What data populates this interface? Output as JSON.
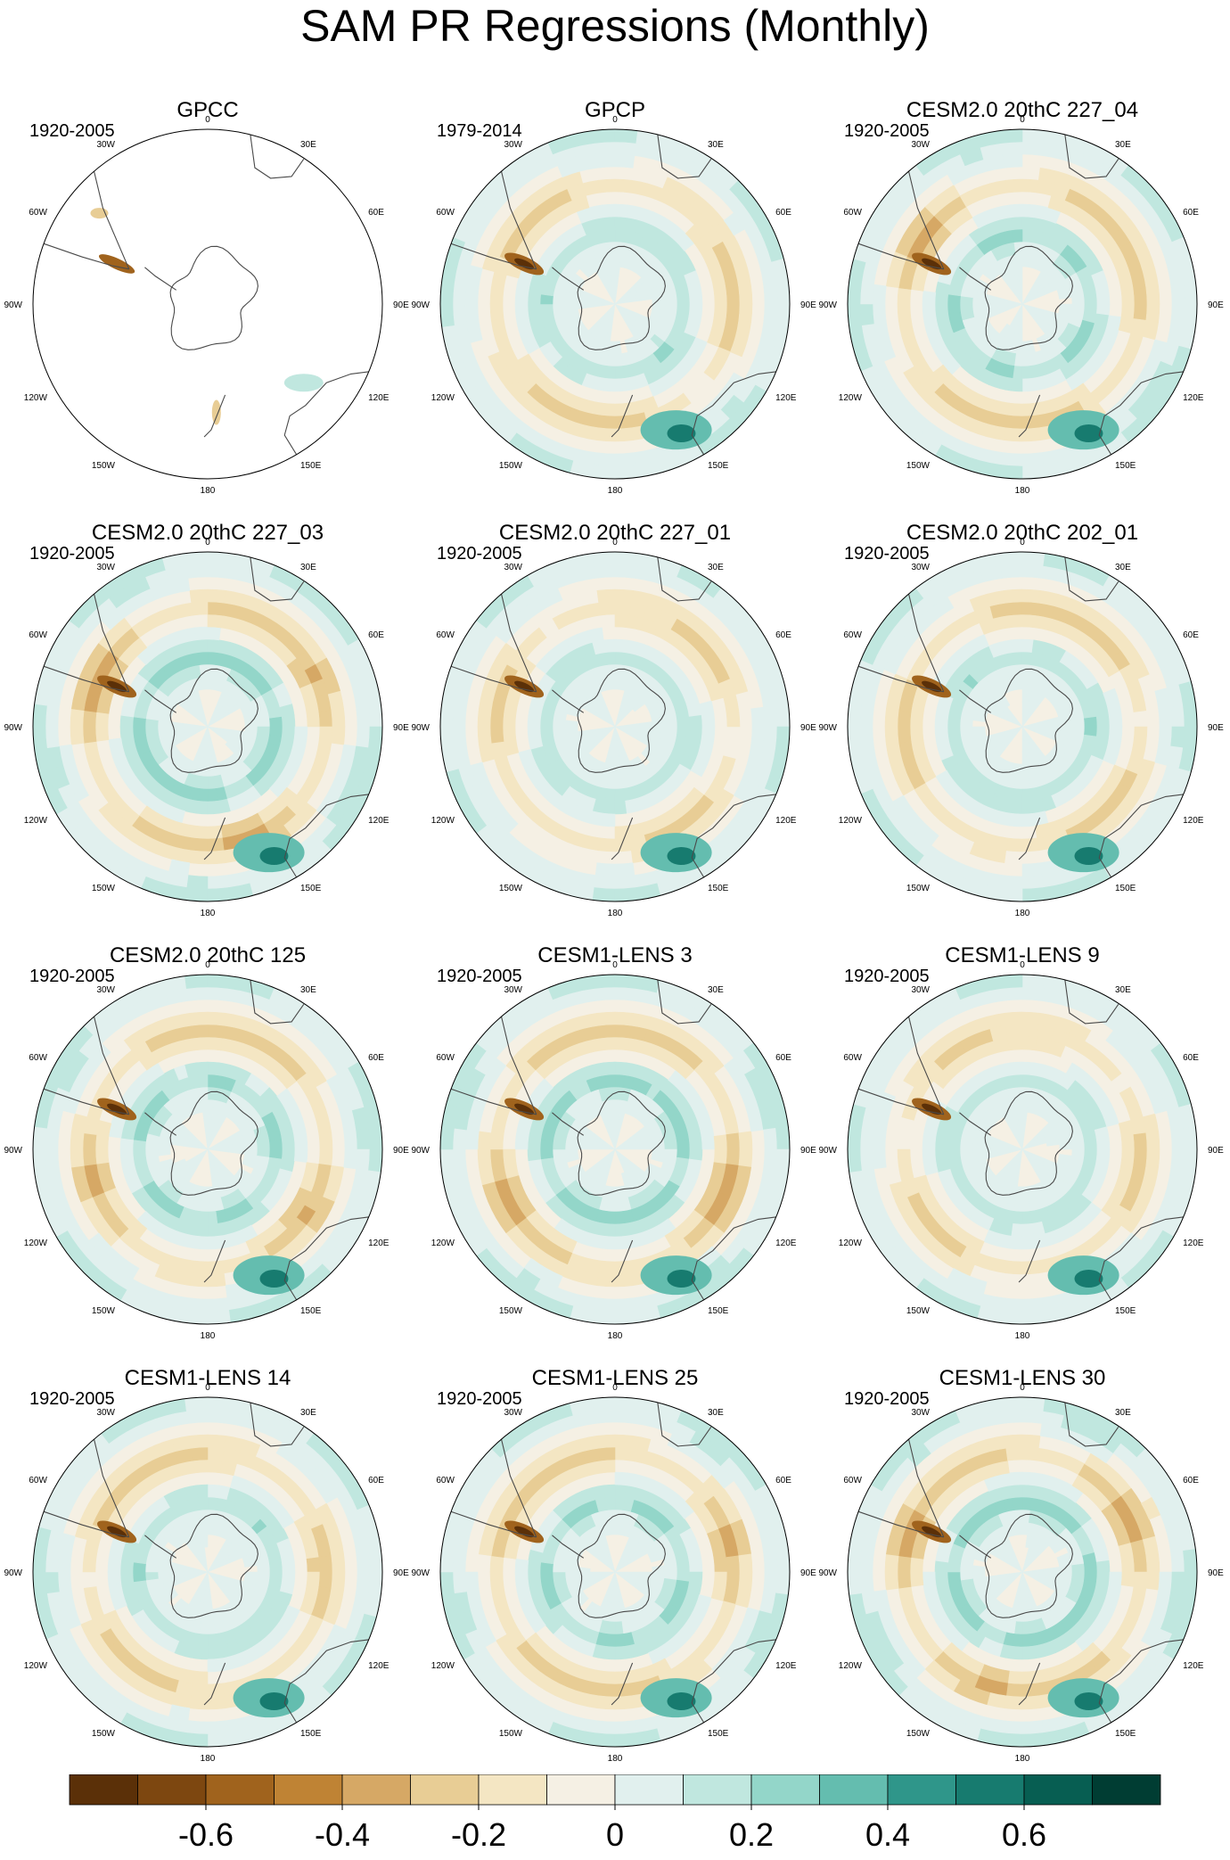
{
  "figure": {
    "title": "SAM PR Regressions (Monthly)"
  },
  "lon_labels": [
    "0",
    "30E",
    "60E",
    "90E",
    "120E",
    "150E",
    "180",
    "150W",
    "120W",
    "90W",
    "60W",
    "30W"
  ],
  "chart_data": [
    {
      "type": "heatmap",
      "projection": "south-polar-stereographic",
      "title": "GPCC",
      "period": "1920-2005",
      "coverage": "land-only",
      "lon_labels": [
        "0",
        "30E",
        "60E",
        "90E",
        "120E",
        "150E",
        "180",
        "150W",
        "120W",
        "90W",
        "60W",
        "30W"
      ]
    },
    {
      "type": "heatmap",
      "projection": "south-polar-stereographic",
      "title": "GPCP",
      "period": "1979-2014",
      "coverage": "global",
      "lon_labels": [
        "0",
        "30E",
        "60E",
        "90E",
        "120E",
        "150E",
        "180",
        "150W",
        "120W",
        "90W",
        "60W",
        "30W"
      ]
    },
    {
      "type": "heatmap",
      "projection": "south-polar-stereographic",
      "title": "CESM2.0 20thC 227_04",
      "period": "1920-2005",
      "coverage": "global",
      "lon_labels": [
        "0",
        "30E",
        "60E",
        "90E",
        "120E",
        "150E",
        "180",
        "150W",
        "120W",
        "90W",
        "60W",
        "30W"
      ]
    },
    {
      "type": "heatmap",
      "projection": "south-polar-stereographic",
      "title": "CESM2.0 20thC 227_03",
      "period": "1920-2005",
      "coverage": "global",
      "lon_labels": [
        "0",
        "30E",
        "60E",
        "90E",
        "120E",
        "150E",
        "180",
        "150W",
        "120W",
        "90W",
        "60W",
        "30W"
      ]
    },
    {
      "type": "heatmap",
      "projection": "south-polar-stereographic",
      "title": "CESM2.0 20thC 227_01",
      "period": "1920-2005",
      "coverage": "global",
      "lon_labels": [
        "0",
        "30E",
        "60E",
        "90E",
        "120E",
        "150E",
        "180",
        "150W",
        "120W",
        "90W",
        "60W",
        "30W"
      ]
    },
    {
      "type": "heatmap",
      "projection": "south-polar-stereographic",
      "title": "CESM2.0 20thC 202_01",
      "period": "1920-2005",
      "coverage": "global",
      "lon_labels": [
        "0",
        "30E",
        "60E",
        "90E",
        "120E",
        "150E",
        "180",
        "150W",
        "120W",
        "90W",
        "60W",
        "30W"
      ]
    },
    {
      "type": "heatmap",
      "projection": "south-polar-stereographic",
      "title": "CESM2.0 20thC 125",
      "period": "1920-2005",
      "coverage": "global",
      "lon_labels": [
        "0",
        "30E",
        "60E",
        "90E",
        "120E",
        "150E",
        "180",
        "150W",
        "120W",
        "90W",
        "60W",
        "30W"
      ]
    },
    {
      "type": "heatmap",
      "projection": "south-polar-stereographic",
      "title": "CESM1-LENS 3",
      "period": "1920-2005",
      "coverage": "global",
      "lon_labels": [
        "0",
        "30E",
        "60E",
        "90E",
        "120E",
        "150E",
        "180",
        "150W",
        "120W",
        "90W",
        "60W",
        "30W"
      ]
    },
    {
      "type": "heatmap",
      "projection": "south-polar-stereographic",
      "title": "CESM1-LENS 9",
      "period": "1920-2005",
      "coverage": "global",
      "lon_labels": [
        "0",
        "30E",
        "60E",
        "90E",
        "120E",
        "150E",
        "180",
        "150W",
        "120W",
        "90W",
        "60W",
        "30W"
      ]
    },
    {
      "type": "heatmap",
      "projection": "south-polar-stereographic",
      "title": "CESM1-LENS 14",
      "period": "1920-2005",
      "coverage": "global",
      "lon_labels": [
        "0",
        "30E",
        "60E",
        "90E",
        "120E",
        "150E",
        "180",
        "150W",
        "120W",
        "90W",
        "60W",
        "30W"
      ]
    },
    {
      "type": "heatmap",
      "projection": "south-polar-stereographic",
      "title": "CESM1-LENS 25",
      "period": "1920-2005",
      "coverage": "global",
      "lon_labels": [
        "0",
        "30E",
        "60E",
        "90E",
        "120E",
        "150E",
        "180",
        "150W",
        "120W",
        "90W",
        "60W",
        "30W"
      ]
    },
    {
      "type": "heatmap",
      "projection": "south-polar-stereographic",
      "title": "CESM1-LENS 30",
      "period": "1920-2005",
      "coverage": "global",
      "lon_labels": [
        "0",
        "30E",
        "60E",
        "90E",
        "120E",
        "150E",
        "180",
        "150W",
        "120W",
        "90W",
        "60W",
        "30W"
      ]
    }
  ],
  "colorbar": {
    "levels": [
      -0.8,
      -0.7,
      -0.6,
      -0.5,
      -0.4,
      -0.3,
      -0.2,
      -0.1,
      0,
      0.1,
      0.2,
      0.3,
      0.4,
      0.5,
      0.6,
      0.7,
      0.8
    ],
    "colors": [
      "#5b3008",
      "#7d4710",
      "#a0631d",
      "#bf8334",
      "#d6a865",
      "#e8cd95",
      "#f4e6c3",
      "#f5f0e4",
      "#e1f0ee",
      "#c0e7df",
      "#93d6c9",
      "#64bdaf",
      "#2f968a",
      "#177b6f",
      "#075e52",
      "#003d33"
    ],
    "tick_values": [
      -0.6,
      -0.4,
      -0.2,
      0,
      0.2,
      0.4,
      0.6
    ],
    "tick_labels": [
      "-0.6",
      "-0.4",
      "-0.2",
      "0",
      "0.2",
      "0.4",
      "0.6"
    ]
  }
}
